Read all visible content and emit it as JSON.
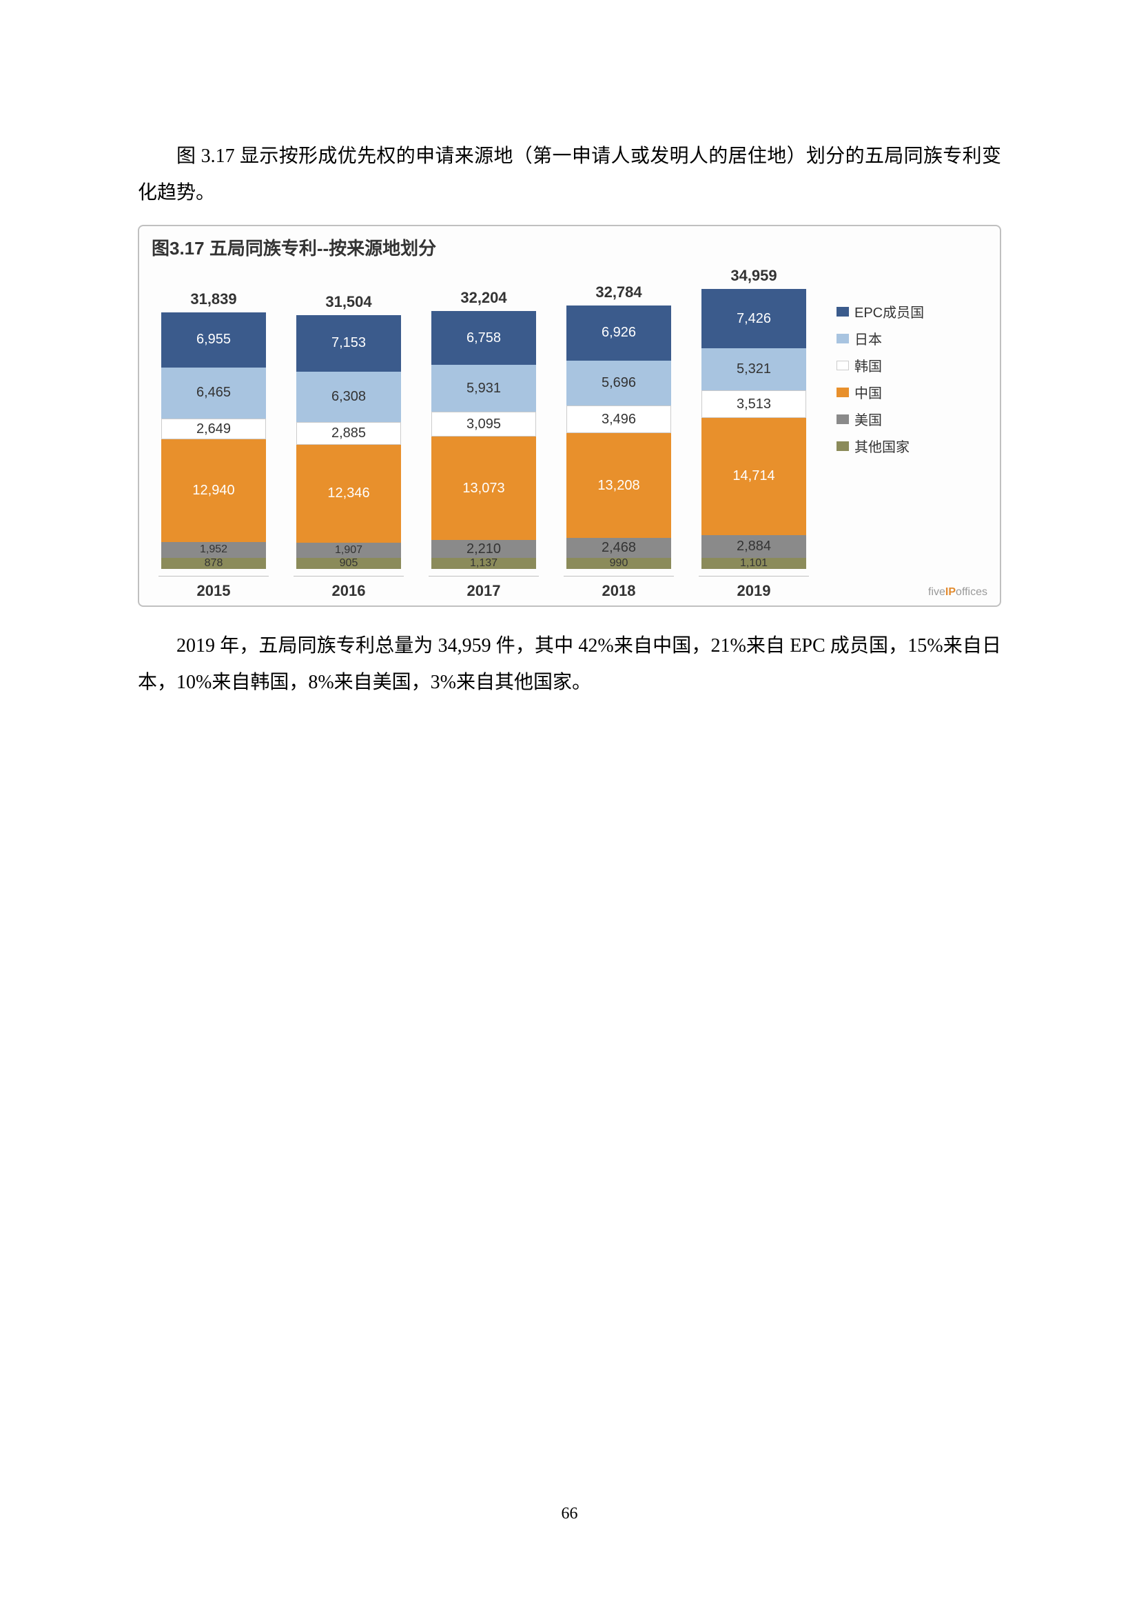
{
  "para1": "图 3.17 显示按形成优先权的申请来源地（第一申请人或发明人的居住地）划分的五局同族专利变化趋势。",
  "para2": "2019 年，五局同族专利总量为 34,959 件，其中 42%来自中国，21%来自 EPC 成员国，15%来自日本，10%来自韩国，8%来自美国，3%来自其他国家。",
  "page_number": "66",
  "chart": {
    "title": "图3.17 五局同族专利--按来源地划分",
    "type": "stacked-bar",
    "height_scale": 0.0115,
    "watermark_prefix": "five",
    "watermark_mid": "IP",
    "watermark_suffix": "offices",
    "series": [
      {
        "key": "epc",
        "label": "EPC成员国",
        "color": "#3b5b8c"
      },
      {
        "key": "japan",
        "label": "日本",
        "color": "#a8c4e0"
      },
      {
        "key": "korea",
        "label": "韩国",
        "color": "#ffffff",
        "border": "#cccccc"
      },
      {
        "key": "china",
        "label": "中国",
        "color": "#e8902c"
      },
      {
        "key": "usa",
        "label": "美国",
        "color": "#8a8a8a"
      },
      {
        "key": "other",
        "label": "其他国家",
        "color": "#8b8b5a"
      }
    ],
    "years": [
      {
        "year": "2015",
        "total": "31,839",
        "values": {
          "epc": "6,955",
          "japan": "6,465",
          "korea": "2,649",
          "china": "12,940",
          "usa": "1,952",
          "other": "878"
        },
        "raw": {
          "epc": 6955,
          "japan": 6465,
          "korea": 2649,
          "china": 12940,
          "usa": 1952,
          "other": 878
        }
      },
      {
        "year": "2016",
        "total": "31,504",
        "values": {
          "epc": "7,153",
          "japan": "6,308",
          "korea": "2,885",
          "china": "12,346",
          "usa": "1,907",
          "other": "905"
        },
        "raw": {
          "epc": 7153,
          "japan": 6308,
          "korea": 2885,
          "china": 12346,
          "usa": 1907,
          "other": 905
        }
      },
      {
        "year": "2017",
        "total": "32,204",
        "values": {
          "epc": "6,758",
          "japan": "5,931",
          "korea": "3,095",
          "china": "13,073",
          "usa": "2,210",
          "other": "1,137"
        },
        "raw": {
          "epc": 6758,
          "japan": 5931,
          "korea": 3095,
          "china": 13073,
          "usa": 2210,
          "other": 1137
        }
      },
      {
        "year": "2018",
        "total": "32,784",
        "values": {
          "epc": "6,926",
          "japan": "5,696",
          "korea": "3,496",
          "china": "13,208",
          "usa": "2,468",
          "other": "990"
        },
        "raw": {
          "epc": 6926,
          "japan": 5696,
          "korea": 3496,
          "china": 13208,
          "usa": 2468,
          "other": 990
        }
      },
      {
        "year": "2019",
        "total": "34,959",
        "values": {
          "epc": "7,426",
          "japan": "5,321",
          "korea": "3,513",
          "china": "14,714",
          "usa": "2,884",
          "other": "1,101"
        },
        "raw": {
          "epc": 7426,
          "japan": 5321,
          "korea": 3513,
          "china": 14714,
          "usa": 2884,
          "other": 1101
        }
      }
    ]
  }
}
